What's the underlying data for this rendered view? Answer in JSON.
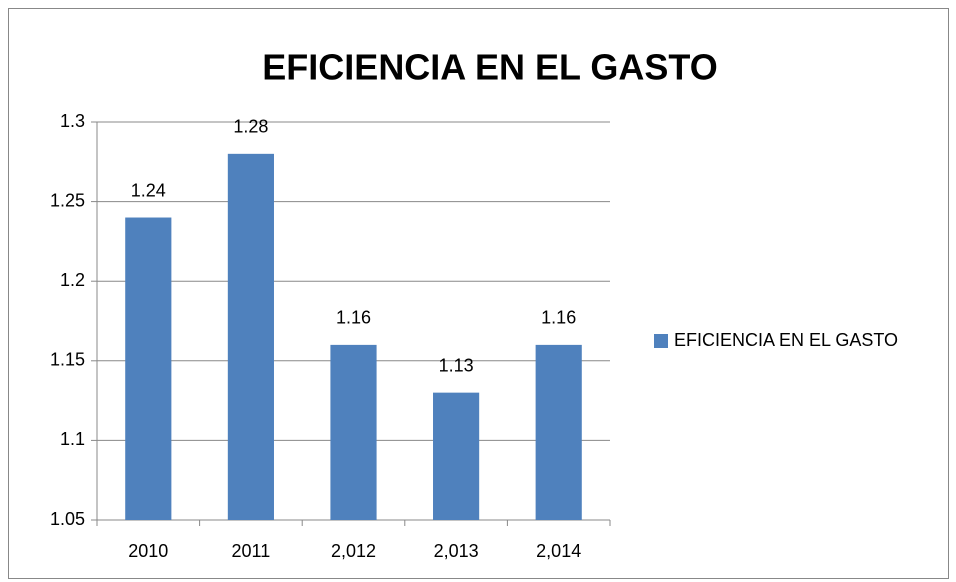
{
  "chart_data": {
    "type": "bar",
    "title": "EFICIENCIA EN EL GASTO",
    "categories": [
      "2010",
      "2011",
      "2,012",
      "2,013",
      "2,014"
    ],
    "series": [
      {
        "name": "EFICIENCIA EN EL GASTO",
        "color": "#4f81bd",
        "values": [
          1.24,
          1.28,
          1.16,
          1.13,
          1.16
        ]
      }
    ],
    "ylim": [
      1.05,
      1.3
    ],
    "yticks": [
      1.05,
      1.1,
      1.15,
      1.2,
      1.25,
      1.3
    ],
    "grid": true,
    "legend": "right"
  }
}
